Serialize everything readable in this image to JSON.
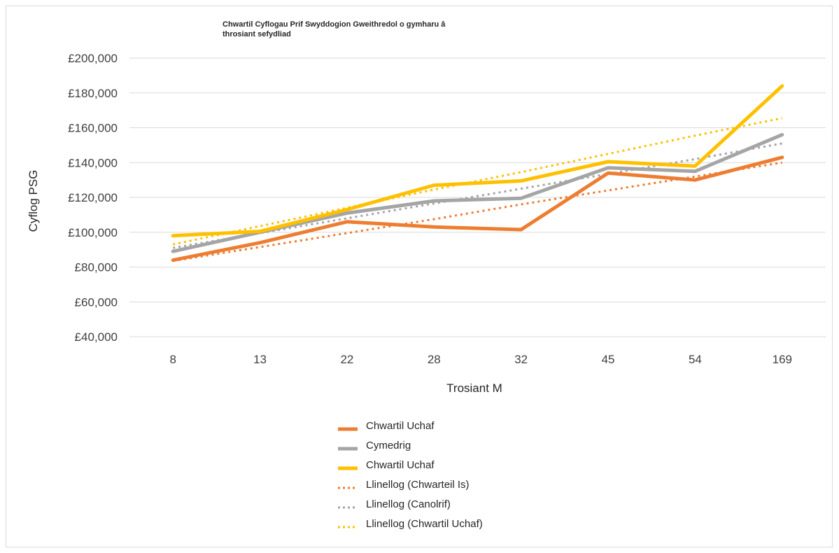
{
  "chart_data": {
    "type": "line",
    "title": "Chwartil Cyflogau Prif Swyddogion Gweithredol o gymharu â throsiant sefydliad",
    "title_lines": [
      "Chwartil Cyflogau Prif Swyddogion Gweithredol o gymharu â",
      "throsiant sefydliad"
    ],
    "xlabel": "Trosiant M",
    "ylabel": "Cyflog PSG",
    "categories": [
      "8",
      "13",
      "22",
      "28",
      "32",
      "45",
      "54",
      "169"
    ],
    "ylim": [
      40000,
      200000
    ],
    "y_ticks": [
      40000,
      60000,
      80000,
      100000,
      120000,
      140000,
      160000,
      180000,
      200000
    ],
    "y_tick_labels": [
      "£40,000",
      "£60,000",
      "£80,000",
      "£100,000",
      "£120,000",
      "£140,000",
      "£160,000",
      "£180,000",
      "£200,000"
    ],
    "grid": "horizontal",
    "legend_position": "bottom",
    "series": [
      {
        "name": "Chwartil Uchaf",
        "style": "solid",
        "color": "#ED7D31",
        "values": [
          84000,
          94000,
          106000,
          103000,
          101500,
          134000,
          130000,
          143000
        ]
      },
      {
        "name": "Cymedrig",
        "style": "solid",
        "color": "#A5A5A5",
        "values": [
          89000,
          100000,
          111000,
          118000,
          119500,
          137000,
          135000,
          156000
        ]
      },
      {
        "name": "Chwartil Uchaf",
        "style": "solid",
        "color": "#FFC000",
        "values": [
          98000,
          100500,
          113000,
          127000,
          129500,
          140500,
          138000,
          184000
        ]
      },
      {
        "name": "Llinellog (Chwarteil Is)",
        "style": "dotted",
        "color": "#ED7D31",
        "values": [
          83500,
          91500,
          99500,
          107500,
          116000,
          124000,
          132000,
          140000
        ]
      },
      {
        "name": "Llinellog (Canolrif)",
        "style": "dotted",
        "color": "#A5A5A5",
        "values": [
          91000,
          99500,
          108000,
          116500,
          125000,
          133500,
          142000,
          151000
        ]
      },
      {
        "name": "Llinellog (Chwartil Uchaf)",
        "style": "dotted",
        "color": "#FFC000",
        "values": [
          93000,
          103500,
          114000,
          124500,
          134500,
          145000,
          155500,
          165500
        ]
      }
    ]
  }
}
